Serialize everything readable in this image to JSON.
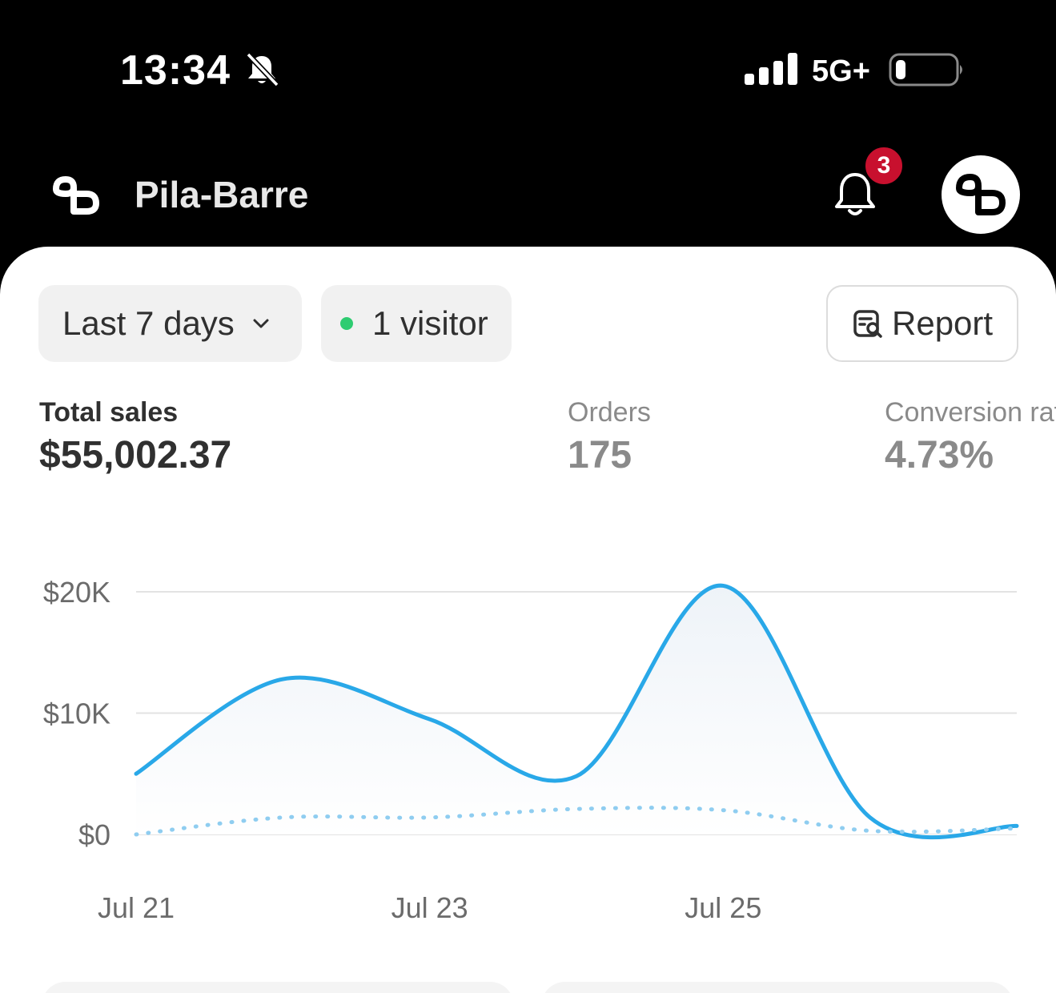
{
  "status_bar": {
    "time": "13:34",
    "network": "5G+",
    "icons": [
      "bell-off-icon",
      "signal-icon",
      "battery-icon"
    ]
  },
  "header": {
    "store_name": "Pila-Barre",
    "notification_count": "3"
  },
  "filters": {
    "date_range": "Last 7 days",
    "live_visitors": "1 visitor",
    "report_label": "Report"
  },
  "metrics": [
    {
      "label": "Total sales",
      "value": "$55,002.37"
    },
    {
      "label": "Orders",
      "value": "175"
    },
    {
      "label": "Conversion rate",
      "value": "4.73%"
    }
  ],
  "colors": {
    "accent_line": "#29a8e8",
    "live_dot": "#2ecc71",
    "badge": "#c8102e"
  },
  "chart_data": {
    "type": "line",
    "ylabel": "",
    "xlabel": "",
    "ylim": [
      0,
      20000
    ],
    "y_ticks": [
      {
        "value": 0,
        "label": "$0"
      },
      {
        "value": 10000,
        "label": "$10K"
      },
      {
        "value": 20000,
        "label": "$20K"
      }
    ],
    "x_tick_labels": [
      "Jul 21",
      "Jul 23",
      "Jul 25"
    ],
    "x": [
      "Jul 21",
      "Jul 22",
      "Jul 23",
      "Jul 24",
      "Jul 25",
      "Jul 26",
      "Jul 27"
    ],
    "series": [
      {
        "style": "solid",
        "values": [
          5000,
          12800,
          9500,
          4800,
          20500,
          1400,
          700
        ]
      },
      {
        "style": "dotted",
        "values": [
          0,
          1400,
          1400,
          2100,
          2000,
          300,
          500
        ]
      }
    ],
    "grid": true
  }
}
